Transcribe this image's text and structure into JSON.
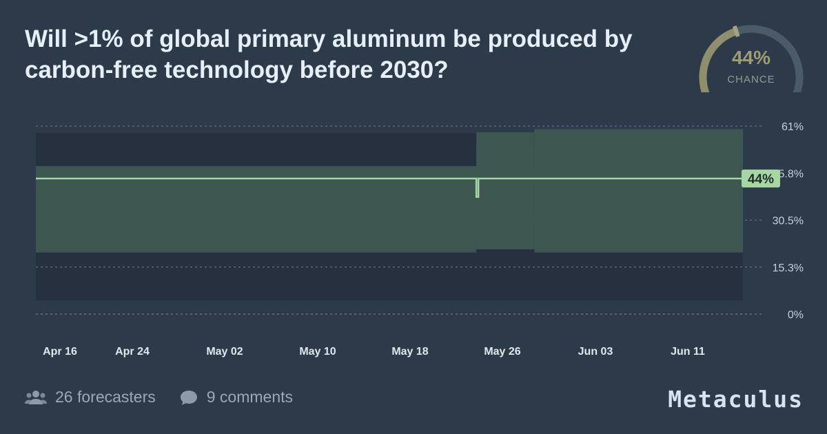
{
  "question": {
    "title": "Will >1% of global primary aluminum be produced by carbon-free technology before 2030?"
  },
  "gauge": {
    "value_label": "44%",
    "caption": "CHANCE",
    "fraction": 0.44
  },
  "footer": {
    "forecasters": "26 forecasters",
    "comments": "9 comments"
  },
  "brand": {
    "name": "Metaculus"
  },
  "colors": {
    "background": "#2c3a4a",
    "plot_background": "#26303f",
    "band": "#3e5650",
    "line": "#a6d6a2",
    "gauge_track": "#4b5a67",
    "gauge_fill": "#8f8f6c"
  },
  "chart_data": {
    "type": "line",
    "title": "",
    "xlabel": "",
    "ylabel": "",
    "x_ticks": [
      "Apr 16",
      "Apr 24",
      "May 02",
      "May 10",
      "May 18",
      "May 26",
      "Jun 03",
      "Jun 11"
    ],
    "y_ticks": [
      "61%",
      "45.8%",
      "30.5%",
      "15.3%",
      "0%"
    ],
    "ylim": [
      0,
      61
    ],
    "x_range": [
      "2023-04-16",
      "2023-06-16"
    ],
    "current_label": "44%",
    "grid": true,
    "series": [
      {
        "name": "",
        "points": [
          {
            "date": "2023-04-16",
            "median": 44,
            "lower": 20,
            "upper": 44
          },
          {
            "date": "2023-05-24",
            "median": 44,
            "lower": 20,
            "upper": 44
          },
          {
            "date": "2023-05-24",
            "median": 38,
            "lower": 21,
            "upper": 55
          },
          {
            "date": "2023-05-29",
            "median": 44,
            "lower": 21,
            "upper": 55
          },
          {
            "date": "2023-05-29",
            "median": 44,
            "lower": 20,
            "upper": 56
          },
          {
            "date": "2023-06-16",
            "median": 44,
            "lower": 20,
            "upper": 56
          }
        ]
      }
    ]
  }
}
